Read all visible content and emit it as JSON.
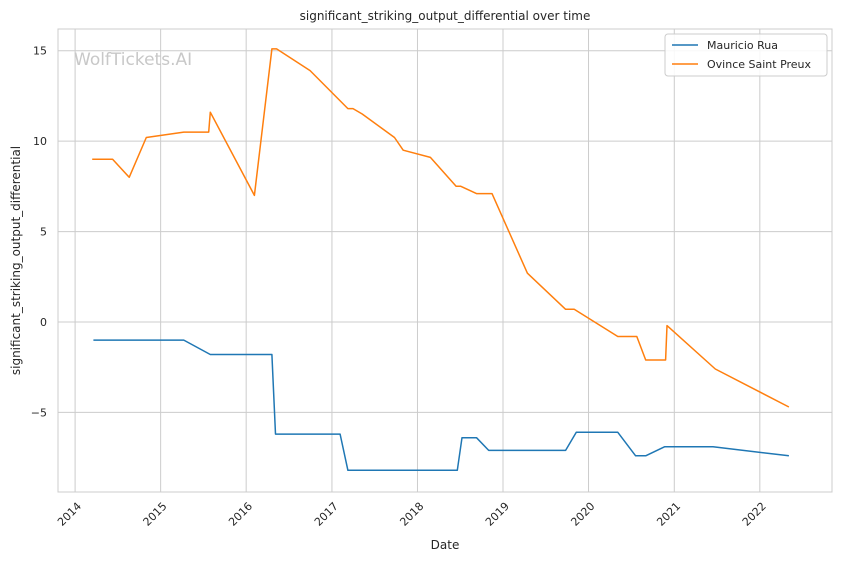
{
  "chart_data": {
    "type": "line",
    "title": "significant_striking_output_differential over time",
    "xlabel": "Date",
    "ylabel": "significant_striking_output_differential",
    "watermark": "WolfTickets.AI",
    "x_axis_type": "date",
    "xlim": [
      "2013-10-20",
      "2022-11-05"
    ],
    "ylim": [
      -9.4,
      16.2
    ],
    "x_ticks": [
      "2014-01-01",
      "2015-01-01",
      "2016-01-01",
      "2017-01-01",
      "2018-01-01",
      "2019-01-01",
      "2020-01-01",
      "2021-01-01",
      "2022-01-01"
    ],
    "x_tick_labels": [
      "2014",
      "2015",
      "2016",
      "2017",
      "2018",
      "2019",
      "2020",
      "2021",
      "2022"
    ],
    "y_ticks": [
      -5,
      0,
      5,
      10,
      15
    ],
    "y_tick_labels": [
      "−5",
      "0",
      "5",
      "10",
      "15"
    ],
    "grid": true,
    "legend_position": "top-right",
    "series": [
      {
        "name": "Mauricio Rua",
        "color": "#1f77b4",
        "points": [
          [
            "2014-03-20",
            -1.0
          ],
          [
            "2015-04-10",
            -1.0
          ],
          [
            "2015-08-01",
            -1.8
          ],
          [
            "2016-04-20",
            -1.8
          ],
          [
            "2016-05-05",
            -6.2
          ],
          [
            "2017-02-05",
            -6.2
          ],
          [
            "2017-03-10",
            -8.2
          ],
          [
            "2018-06-20",
            -8.2
          ],
          [
            "2018-07-10",
            -6.4
          ],
          [
            "2018-09-10",
            -6.4
          ],
          [
            "2018-11-01",
            -7.1
          ],
          [
            "2019-09-25",
            -7.1
          ],
          [
            "2019-11-10",
            -6.1
          ],
          [
            "2020-05-05",
            -6.1
          ],
          [
            "2020-07-20",
            -7.4
          ],
          [
            "2020-09-01",
            -7.4
          ],
          [
            "2020-11-20",
            -6.9
          ],
          [
            "2021-06-15",
            -6.9
          ],
          [
            "2022-05-05",
            -7.4
          ]
        ]
      },
      {
        "name": "Ovince Saint Preux",
        "color": "#ff7f0e",
        "points": [
          [
            "2014-03-15",
            9.0
          ],
          [
            "2014-06-10",
            9.0
          ],
          [
            "2014-08-20",
            8.0
          ],
          [
            "2014-11-01",
            10.2
          ],
          [
            "2015-04-10",
            10.5
          ],
          [
            "2015-07-25",
            10.5
          ],
          [
            "2015-08-01",
            11.6
          ],
          [
            "2016-02-05",
            7.0
          ],
          [
            "2016-04-20",
            15.1
          ],
          [
            "2016-05-10",
            15.1
          ],
          [
            "2016-09-30",
            13.9
          ],
          [
            "2017-03-10",
            11.8
          ],
          [
            "2017-04-01",
            11.8
          ],
          [
            "2017-05-10",
            11.5
          ],
          [
            "2017-09-25",
            10.2
          ],
          [
            "2017-11-01",
            9.5
          ],
          [
            "2018-02-25",
            9.1
          ],
          [
            "2018-06-15",
            7.5
          ],
          [
            "2018-07-05",
            7.5
          ],
          [
            "2018-09-10",
            7.1
          ],
          [
            "2018-11-15",
            7.1
          ],
          [
            "2019-04-15",
            2.7
          ],
          [
            "2019-09-25",
            0.7
          ],
          [
            "2019-11-01",
            0.7
          ],
          [
            "2020-05-05",
            -0.8
          ],
          [
            "2020-07-25",
            -0.8
          ],
          [
            "2020-09-01",
            -2.1
          ],
          [
            "2020-11-25",
            -2.1
          ],
          [
            "2020-12-01",
            -0.2
          ],
          [
            "2021-06-25",
            -2.6
          ],
          [
            "2022-05-05",
            -4.7
          ]
        ]
      }
    ]
  }
}
